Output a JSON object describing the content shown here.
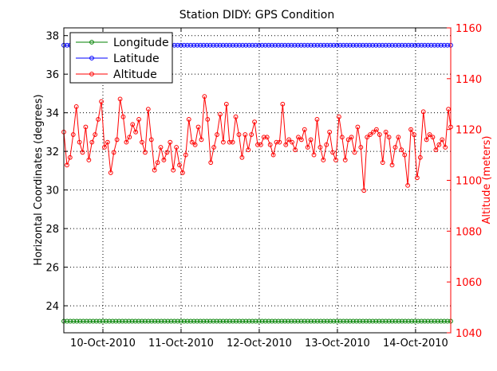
{
  "chart_data": {
    "type": "line",
    "title": "Station DIDY: GPS Condition",
    "xlabel": "",
    "ylabel_left": "Horizontal Coordinates (degrees)",
    "ylabel_right": "Altitude (meters)",
    "ylim_left": [
      22.6,
      38.4
    ],
    "ylim_right": [
      1040,
      1160
    ],
    "x_range_days": [
      0,
      4.95
    ],
    "x_ticks": [
      {
        "day": 0.5,
        "label": "10-Oct-2010"
      },
      {
        "day": 1.5,
        "label": "11-Oct-2010"
      },
      {
        "day": 2.5,
        "label": "12-Oct-2010"
      },
      {
        "day": 3.5,
        "label": "13-Oct-2010"
      },
      {
        "day": 4.5,
        "label": "14-Oct-2010"
      }
    ],
    "y_ticks_left": [
      24,
      26,
      28,
      30,
      32,
      34,
      36,
      38
    ],
    "y_ticks_right": [
      1040,
      1060,
      1080,
      1100,
      1120,
      1140,
      1160
    ],
    "grid": true,
    "legend_position": "top-left",
    "series": [
      {
        "name": "Longitude",
        "axis": "left",
        "color": "#008000",
        "constant": 23.2,
        "count": 120
      },
      {
        "name": "Latitude",
        "axis": "left",
        "color": "#0000ff",
        "constant": 37.5,
        "count": 120
      },
      {
        "name": "Altitude",
        "axis": "right",
        "color": "#ff0000",
        "x": [
          0.0,
          0.04,
          0.08,
          0.12,
          0.16,
          0.2,
          0.24,
          0.28,
          0.32,
          0.36,
          0.4,
          0.44,
          0.48,
          0.52,
          0.56,
          0.6,
          0.64,
          0.68,
          0.72,
          0.76,
          0.8,
          0.84,
          0.88,
          0.92,
          0.96,
          1.0,
          1.04,
          1.08,
          1.12,
          1.16,
          1.2,
          1.24,
          1.28,
          1.32,
          1.36,
          1.4,
          1.44,
          1.48,
          1.52,
          1.56,
          1.6,
          1.64,
          1.68,
          1.72,
          1.76,
          1.8,
          1.84,
          1.88,
          1.92,
          1.96,
          2.0,
          2.04,
          2.08,
          2.12,
          2.16,
          2.2,
          2.24,
          2.28,
          2.32,
          2.36,
          2.4,
          2.44,
          2.48,
          2.52,
          2.56,
          2.6,
          2.64,
          2.68,
          2.72,
          2.76,
          2.8,
          2.84,
          2.88,
          2.92,
          2.96,
          3.0,
          3.04,
          3.08,
          3.12,
          3.16,
          3.2,
          3.24,
          3.28,
          3.32,
          3.36,
          3.4,
          3.44,
          3.48,
          3.52,
          3.56,
          3.6,
          3.64,
          3.68,
          3.72,
          3.76,
          3.8,
          3.84,
          3.88,
          3.92,
          3.96,
          4.0,
          4.04,
          4.08,
          4.12,
          4.16,
          4.2,
          4.24,
          4.28,
          4.32,
          4.36,
          4.4,
          4.44,
          4.48,
          4.52,
          4.56,
          4.6,
          4.64,
          4.68,
          4.72,
          4.76,
          4.8,
          4.84,
          4.88,
          4.92,
          4.95
        ],
        "values": [
          1119,
          1106,
          1109,
          1118,
          1129,
          1115,
          1111,
          1121,
          1108,
          1115,
          1118,
          1124,
          1131,
          1113,
          1115,
          1103,
          1111,
          1116,
          1132,
          1125,
          1115,
          1117,
          1122,
          1119,
          1124,
          1115,
          1111,
          1128,
          1116,
          1104,
          1107,
          1113,
          1108,
          1111,
          1115,
          1104,
          1113,
          1106,
          1103,
          1110,
          1124,
          1115,
          1114,
          1121,
          1116,
          1133,
          1124,
          1107,
          1113,
          1118,
          1126,
          1115,
          1130,
          1115,
          1115,
          1125,
          1118,
          1109,
          1118,
          1112,
          1118,
          1123,
          1114,
          1114,
          1117,
          1117,
          1114,
          1110,
          1115,
          1115,
          1130,
          1114,
          1116,
          1115,
          1112,
          1117,
          1116,
          1120,
          1113,
          1116,
          1110,
          1124,
          1113,
          1108,
          1114,
          1119,
          1111,
          1108,
          1125,
          1117,
          1108,
          1116,
          1117,
          1111,
          1121,
          1113,
          1096,
          1117,
          1118,
          1119,
          1120,
          1118,
          1107,
          1119,
          1117,
          1106,
          1113,
          1117,
          1112,
          1110,
          1098,
          1120,
          1118,
          1101,
          1109,
          1127,
          1116,
          1118,
          1117,
          1112,
          1114,
          1116,
          1113,
          1128,
          1121
        ]
      }
    ]
  }
}
